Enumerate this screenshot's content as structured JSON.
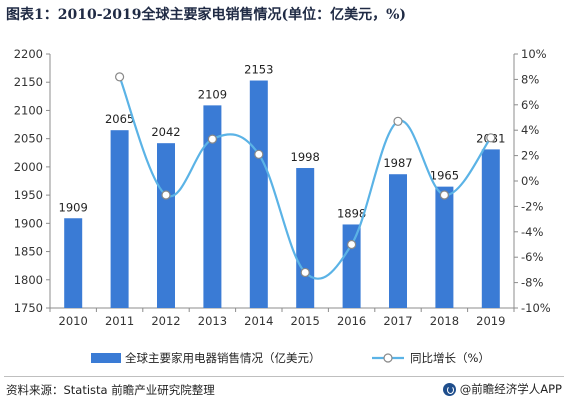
{
  "title": "图表1：2010-2019全球主要家电销售情况(单位：亿美元，%)",
  "source_text": "资料来源：Statista 前瞻产业研究院整理",
  "brand_text": "@前瞻经济学人APP",
  "colors": {
    "bar": "#3a7bd5",
    "line": "#5bb3e6",
    "marker_fill": "#ffffff",
    "marker_stroke": "#888888",
    "grid": "#d9d9d9"
  },
  "chart_data": {
    "type": "bar",
    "categories": [
      "2010",
      "2011",
      "2012",
      "2013",
      "2014",
      "2015",
      "2016",
      "2017",
      "2018",
      "2019"
    ],
    "series": [
      {
        "name": "全球主要家用电器销售情况（亿美元）",
        "type": "bar",
        "axis": "left",
        "values": [
          1909,
          2065,
          2042,
          2109,
          2153,
          1998,
          1898,
          1987,
          1965,
          2031
        ]
      },
      {
        "name": "同比增长（%）",
        "type": "line",
        "axis": "right",
        "values": [
          null,
          8.2,
          -1.1,
          3.3,
          2.1,
          -7.2,
          -5.0,
          4.7,
          -1.1,
          3.4
        ]
      }
    ],
    "ylim": [
      1750,
      2200
    ],
    "yticks": [
      1750,
      1800,
      1850,
      1900,
      1950,
      2000,
      2050,
      2100,
      2150,
      2200
    ],
    "y2lim": [
      -10,
      10
    ],
    "y2ticks": [
      "-10%",
      "-8%",
      "-6%",
      "-4%",
      "-2%",
      "0%",
      "2%",
      "4%",
      "6%",
      "8%",
      "10%"
    ],
    "legend_position": "bottom",
    "grid": false
  }
}
